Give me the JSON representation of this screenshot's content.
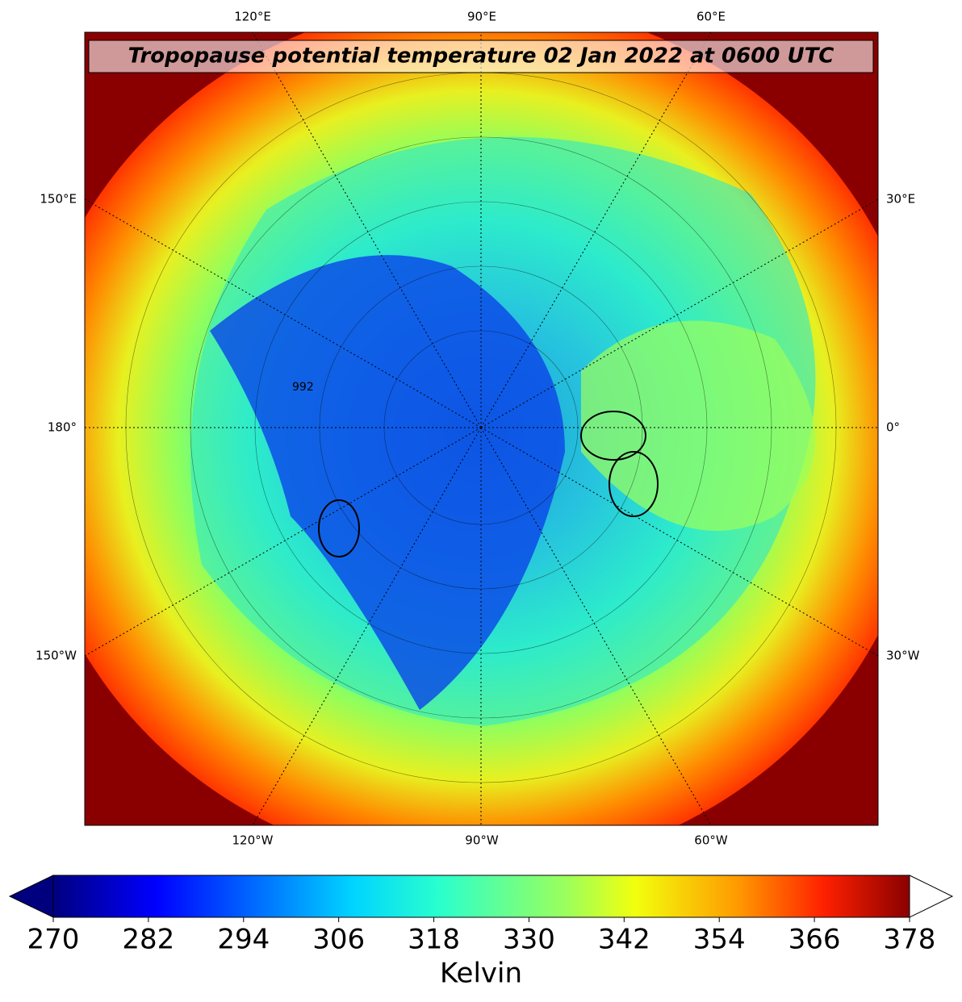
{
  "title": "Tropopause potential temperature 02 Jan 2022 at 0600 UTC",
  "map": {
    "top_labels": [
      "120°E",
      "90°E",
      "60°E"
    ],
    "bottom_labels": [
      "120°W",
      "90°W",
      "60°W"
    ],
    "left_labels": [
      "150°E",
      "180°",
      "150°W"
    ],
    "right_labels": [
      "30°E",
      "0°",
      "30°W"
    ],
    "contour_label": "992"
  },
  "colorbar": {
    "label": "Kelvin",
    "lim": [
      270,
      378
    ],
    "ticks": [
      270,
      282,
      294,
      306,
      318,
      330,
      342,
      354,
      366,
      378
    ]
  }
}
